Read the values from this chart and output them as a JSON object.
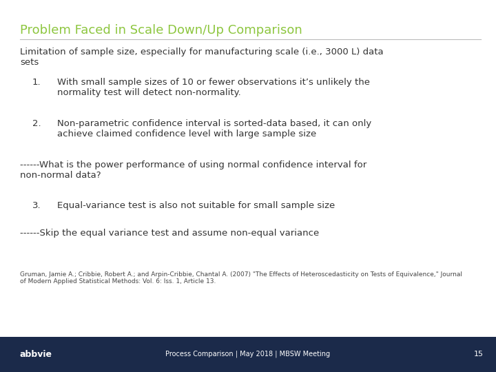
{
  "title": "Problem Faced in Scale Down/Up Comparison",
  "title_color": "#8dc63f",
  "bg_color": "#ffffff",
  "footer_bg_color": "#1b2a4a",
  "footer_text": "Process Comparison | May 2018 | MBSW Meeting",
  "footer_page": "15",
  "footer_logo": "abbvie",
  "intro_text": "Limitation of sample size, especially for manufacturing scale (i.e., 3000 L) data\nsets",
  "item1_num": "1.",
  "item1_text": "With small sample sizes of 10 or fewer observations it’s unlikely the\nnormality test will detect non-normality.",
  "item2_num": "2.",
  "item2_text": "Non-parametric confidence interval is sorted-data based, it can only\nachieve claimed confidence level with large sample size",
  "dash1_text": "------What is the power performance of using normal confidence interval for\nnon-normal data?",
  "item3_num": "3.",
  "item3_text": "Equal-variance test is also not suitable for small sample size",
  "dash2_text": "------Skip the equal variance test and assume non-equal variance",
  "footnote_line1": "Gruman, Jamie A.; Cribbie, Robert A.; and Arpin-Cribbie, Chantal A. (2007) \"The Effects of Heteroscedasticity on Tests of Equivalence,\" Journal",
  "footnote_line2": "of Modern Applied Statistical Methods: Vol. 6: Iss. 1, Article 13.",
  "title_fontsize": 13,
  "body_fontsize": 9.5,
  "footnote_fontsize": 6.5,
  "footer_fontsize": 7,
  "footer_logo_fontsize": 9
}
